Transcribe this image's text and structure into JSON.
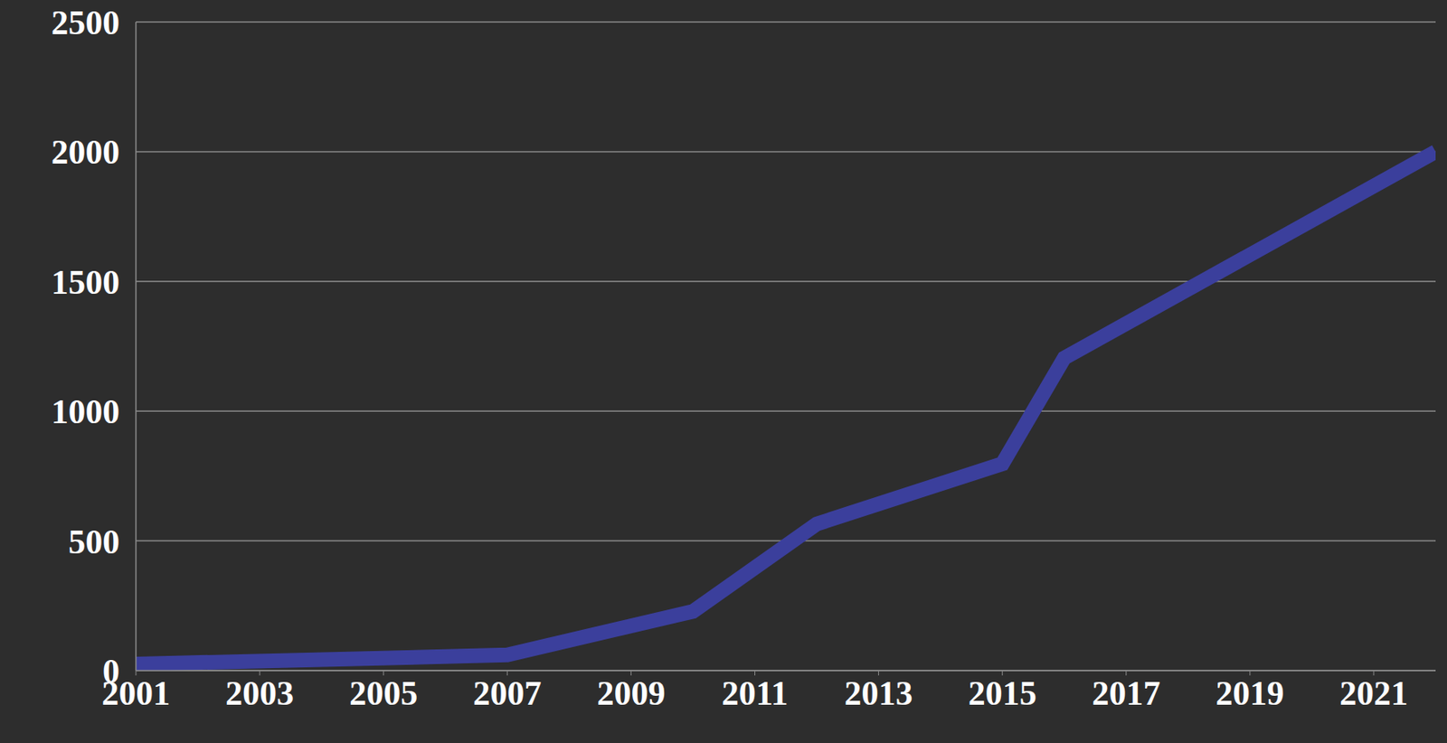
{
  "chart_data": {
    "type": "line",
    "x": [
      2001,
      2007,
      2010,
      2012,
      2015,
      2016,
      2022
    ],
    "values": [
      25,
      60,
      228,
      565,
      797,
      1205,
      2000
    ],
    "color": "#3b3f9c",
    "xlim": [
      2001,
      2022
    ],
    "xticks": [
      2001,
      2003,
      2005,
      2007,
      2009,
      2011,
      2013,
      2015,
      2017,
      2019,
      2021
    ],
    "ylim": [
      0,
      2500
    ],
    "yticks": [
      0,
      500,
      1000,
      1500,
      2000,
      2500
    ],
    "grid": true
  }
}
